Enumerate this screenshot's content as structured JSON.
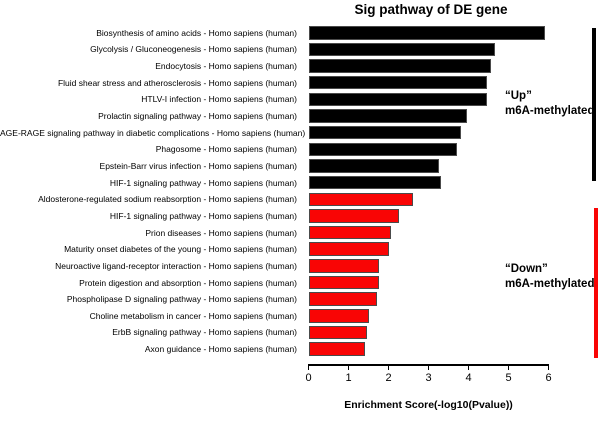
{
  "title": "Sig pathway of DE gene",
  "chart_data": {
    "type": "bar",
    "orientation": "horizontal",
    "title": "Sig pathway of DE gene",
    "xlabel": "Enrichment Score(-log10(Pvalue))",
    "ylabel": "",
    "xlim": [
      0,
      6
    ],
    "xticks": [
      0,
      1,
      2,
      3,
      4,
      5,
      6
    ],
    "grid": false,
    "legend": "none",
    "categories": [
      "Biosynthesis of amino acids - Homo sapiens (human)",
      "Glycolysis / Gluconeogenesis - Homo sapiens (human)",
      "Endocytosis - Homo sapiens (human)",
      "Fluid shear stress and atherosclerosis - Homo sapiens (human)",
      "HTLV-I infection - Homo sapiens (human)",
      "Prolactin signaling pathway - Homo sapiens (human)",
      "AGE-RAGE signaling pathway in diabetic complications - Homo sapiens (human)",
      "Phagosome - Homo sapiens (human)",
      "Epstein-Barr virus infection - Homo sapiens (human)",
      "HIF-1 signaling pathway - Homo sapiens (human)",
      "Aldosterone-regulated sodium reabsorption - Homo sapiens (human)",
      "HIF-1 signaling pathway - Homo sapiens (human)",
      "Prion diseases - Homo sapiens (human)",
      "Maturity onset diabetes of the young - Homo sapiens (human)",
      "Neuroactive ligand-receptor interaction - Homo sapiens (human)",
      "Protein digestion and absorption - Homo sapiens (human)",
      "Phospholipase D signaling pathway - Homo sapiens (human)",
      "Choline metabolism in cancer - Homo sapiens (human)",
      "ErbB signaling pathway - Homo sapiens (human)",
      "Axon guidance - Homo sapiens (human)"
    ],
    "values": [
      5.9,
      4.65,
      4.55,
      4.45,
      4.45,
      3.95,
      3.8,
      3.7,
      3.25,
      3.3,
      2.6,
      2.25,
      2.05,
      2.0,
      1.75,
      1.75,
      1.7,
      1.5,
      1.45,
      1.4
    ],
    "bar_groups": [
      "up",
      "up",
      "up",
      "up",
      "up",
      "up",
      "up",
      "up",
      "up",
      "up",
      "down",
      "down",
      "down",
      "down",
      "down",
      "down",
      "down",
      "down",
      "down",
      "down"
    ]
  },
  "annotations": {
    "up": {
      "line1": "“Up”",
      "line2": "m6A-methylated"
    },
    "down": {
      "line1": "“Down”",
      "line2": "m6A-methylated"
    }
  },
  "colors": {
    "up_bar": "#000000",
    "down_bar": "#F90505",
    "bar_border": "#4a4a4a",
    "axis": "#000000",
    "up_bracket": "#000000",
    "down_bracket": "#F90505",
    "background": "#ffffff",
    "text": "#000000"
  }
}
